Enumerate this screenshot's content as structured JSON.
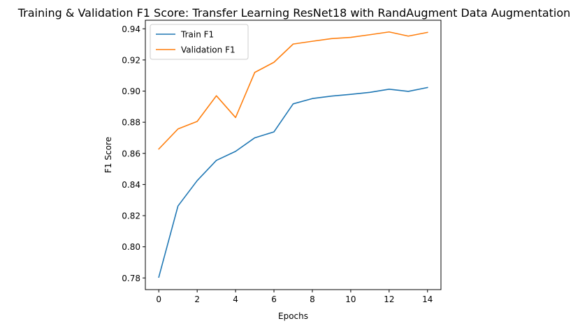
{
  "chart_data": {
    "type": "line",
    "title": "Training & Validation F1 Score: Transfer Learning ResNet18 with RandAugment Data Augmentation",
    "xlabel": "Epochs",
    "ylabel": "F1 Score",
    "x": [
      0,
      1,
      2,
      3,
      4,
      5,
      6,
      7,
      8,
      9,
      10,
      11,
      12,
      13,
      14
    ],
    "xlim": [
      -0.7,
      14.7
    ],
    "ylim": [
      0.7725,
      0.9455
    ],
    "xticks": [
      0,
      2,
      4,
      6,
      8,
      10,
      12,
      14
    ],
    "yticks": [
      0.78,
      0.8,
      0.82,
      0.84,
      0.86,
      0.88,
      0.9,
      0.92,
      0.94
    ],
    "xtick_labels": [
      "0",
      "2",
      "4",
      "6",
      "8",
      "10",
      "12",
      "14"
    ],
    "ytick_labels": [
      "0.78",
      "0.80",
      "0.82",
      "0.84",
      "0.86",
      "0.88",
      "0.90",
      "0.92",
      "0.94"
    ],
    "grid": false,
    "legend_position": "top-left",
    "series": [
      {
        "name": "Train F1",
        "color": "#1f77b4",
        "values": [
          0.7805,
          0.8262,
          0.8425,
          0.8555,
          0.8613,
          0.87,
          0.8738,
          0.8918,
          0.8952,
          0.8968,
          0.8979,
          0.8992,
          0.9012,
          0.8998,
          0.9023
        ]
      },
      {
        "name": "Validation F1",
        "color": "#ff7f0e",
        "values": [
          0.8628,
          0.8757,
          0.8805,
          0.897,
          0.883,
          0.912,
          0.9185,
          0.9302,
          0.932,
          0.9337,
          0.9345,
          0.9362,
          0.938,
          0.9353,
          0.9377
        ]
      }
    ]
  }
}
